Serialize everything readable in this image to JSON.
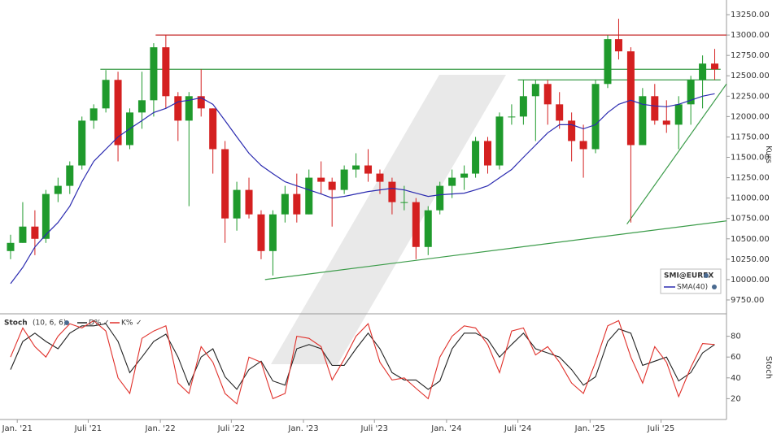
{
  "chart_data": [
    {
      "type": "candlestick",
      "legend_title": "SMI@EUREX",
      "ylabel": "Kurs",
      "up_color": "#1f9a2c",
      "down_color": "#d42020",
      "xlim": [
        "2020-11-18",
        "2025-12-15"
      ],
      "ylim": [
        9580,
        13430
      ],
      "yticks": [
        {
          "value": 9750,
          "label": "9750.00"
        },
        {
          "value": 10000,
          "label": "10000.00"
        },
        {
          "value": 10250,
          "label": "10250.00"
        },
        {
          "value": 10500,
          "label": "10500.00"
        },
        {
          "value": 10750,
          "label": "10750.00"
        },
        {
          "value": 11000,
          "label": "11000.00"
        },
        {
          "value": 11250,
          "label": "11250.00"
        },
        {
          "value": 11500,
          "label": "11500.00"
        },
        {
          "value": 11750,
          "label": "11750.00"
        },
        {
          "value": 12000,
          "label": "12000.00"
        },
        {
          "value": 12250,
          "label": "12250.00"
        },
        {
          "value": 12500,
          "label": "12500.00"
        },
        {
          "value": 12750,
          "label": "12750.00"
        },
        {
          "value": 13000,
          "label": "13000.00"
        },
        {
          "value": 13250,
          "label": "13250.00"
        }
      ],
      "x": [
        "2020-12-15",
        "2021-01-15",
        "2021-02-15",
        "2021-03-15",
        "2021-04-15",
        "2021-05-15",
        "2021-06-15",
        "2021-07-15",
        "2021-08-15",
        "2021-09-15",
        "2021-10-15",
        "2021-11-15",
        "2021-12-15",
        "2022-01-15",
        "2022-02-15",
        "2022-03-15",
        "2022-04-15",
        "2022-05-15",
        "2022-06-15",
        "2022-07-15",
        "2022-08-15",
        "2022-09-15",
        "2022-10-15",
        "2022-11-15",
        "2022-12-15",
        "2023-01-15",
        "2023-02-15",
        "2023-03-15",
        "2023-04-15",
        "2023-05-15",
        "2023-06-15",
        "2023-07-15",
        "2023-08-15",
        "2023-09-15",
        "2023-10-15",
        "2023-11-15",
        "2023-12-15",
        "2024-01-15",
        "2024-02-15",
        "2024-03-15",
        "2024-04-15",
        "2024-05-15",
        "2024-06-15",
        "2024-07-15",
        "2024-08-15",
        "2024-09-15",
        "2024-10-15",
        "2024-11-15",
        "2024-12-15",
        "2025-01-15",
        "2025-02-15",
        "2025-03-15",
        "2025-04-15",
        "2025-05-15",
        "2025-06-15",
        "2025-07-15",
        "2025-08-15",
        "2025-09-15",
        "2025-10-15",
        "2025-11-15"
      ],
      "open": [
        10350,
        10450,
        10650,
        10500,
        11050,
        11150,
        11400,
        11950,
        12100,
        12450,
        11650,
        12050,
        12200,
        12850,
        12250,
        11950,
        12250,
        12100,
        11600,
        10750,
        11100,
        10800,
        10350,
        10800,
        11050,
        10800,
        11250,
        11200,
        11100,
        11350,
        11400,
        11300,
        11200,
        10950,
        10950,
        10400,
        10850,
        11150,
        11250,
        11300,
        11700,
        11400,
        12000,
        12000,
        12250,
        12400,
        12150,
        11950,
        11700,
        11600,
        12400,
        12950,
        12800,
        11650,
        12250,
        11950,
        11900,
        12150,
        12450,
        12650
      ],
      "high": [
        10550,
        10950,
        10850,
        11100,
        11250,
        11450,
        12000,
        12150,
        12570,
        12550,
        12100,
        12550,
        12900,
        13000,
        12300,
        12300,
        12580,
        12100,
        11700,
        11200,
        11250,
        10850,
        10850,
        11150,
        11300,
        11350,
        11450,
        11250,
        11400,
        11550,
        11600,
        11350,
        11250,
        11150,
        11000,
        10900,
        11200,
        11350,
        11400,
        11750,
        11750,
        12050,
        12150,
        12450,
        12450,
        12450,
        12300,
        12050,
        11900,
        12450,
        13000,
        13200,
        12850,
        12350,
        12400,
        12200,
        12250,
        12500,
        12750,
        12830
      ],
      "low": [
        10250,
        10450,
        10300,
        10450,
        10950,
        11050,
        11350,
        11850,
        12050,
        11450,
        11600,
        11850,
        12000,
        12100,
        11700,
        10900,
        12000,
        11300,
        10450,
        10600,
        10750,
        10250,
        10050,
        10700,
        10700,
        10800,
        11050,
        10650,
        11050,
        11250,
        11200,
        11050,
        10800,
        10850,
        10250,
        10300,
        10800,
        11000,
        11100,
        11250,
        11300,
        11350,
        11900,
        11900,
        11700,
        11900,
        11850,
        11450,
        11250,
        11550,
        12350,
        12700,
        10700,
        11650,
        11900,
        11800,
        11600,
        11900,
        12100,
        12450
      ],
      "close": [
        10450,
        10650,
        10500,
        11050,
        11150,
        11400,
        11950,
        12100,
        12450,
        11650,
        12050,
        12200,
        12850,
        12250,
        11950,
        12250,
        12100,
        11600,
        10750,
        11100,
        10800,
        10350,
        10800,
        11050,
        10800,
        11250,
        11200,
        11100,
        11350,
        11400,
        11300,
        11200,
        10950,
        10950,
        10400,
        10850,
        11150,
        11250,
        11300,
        11700,
        11400,
        12000,
        12000,
        12250,
        12400,
        12150,
        11950,
        11700,
        11600,
        12400,
        12950,
        12800,
        11650,
        12250,
        11950,
        11900,
        12150,
        12450,
        12650,
        12580
      ],
      "series": [
        {
          "name": "SMA(40)",
          "color": "#2b2bb0",
          "values": [
            9950,
            10150,
            10400,
            10550,
            10700,
            10900,
            11200,
            11450,
            11600,
            11750,
            11850,
            11950,
            12050,
            12100,
            12180,
            12200,
            12230,
            12150,
            11950,
            11750,
            11550,
            11400,
            11300,
            11200,
            11150,
            11100,
            11050,
            11000,
            11020,
            11050,
            11080,
            11100,
            11120,
            11100,
            11060,
            11020,
            11040,
            11050,
            11060,
            11100,
            11150,
            11250,
            11350,
            11500,
            11650,
            11800,
            11900,
            11900,
            11850,
            11900,
            12050,
            12150,
            12200,
            12150,
            12130,
            12120,
            12150,
            12200,
            12250,
            12280
          ]
        }
      ],
      "lines": [
        {
          "x": [
            "2021-12-20",
            "2025-12-15"
          ],
          "y": [
            13000,
            13000
          ],
          "color": "#c62a2a"
        },
        {
          "x": [
            "2021-08-01",
            "2025-11-30"
          ],
          "y": [
            12580,
            12580
          ],
          "color": "#3c9c4a"
        },
        {
          "x": [
            "2024-07-01",
            "2025-11-30"
          ],
          "y": [
            12450,
            12450
          ],
          "color": "#3c9c4a"
        },
        {
          "x": [
            "2022-09-25",
            "2025-12-15"
          ],
          "y": [
            10000,
            10720
          ],
          "color": "#3c9c4a"
        },
        {
          "x": [
            "2025-04-05",
            "2025-12-15"
          ],
          "y": [
            10680,
            12400
          ],
          "color": "#3c9c4a"
        }
      ]
    },
    {
      "type": "line",
      "title": "Stoch",
      "parameters": "(10, 6, 6)",
      "ylabel": "Stoch",
      "xlim": [
        "2020-11-18",
        "2025-12-15"
      ],
      "ylim": [
        0,
        100
      ],
      "yticks": [
        20,
        40,
        60,
        80
      ],
      "xticks": [
        {
          "value": "2021-01-01",
          "label": "Jan. '21"
        },
        {
          "value": "2021-07-01",
          "label": "Juli '21"
        },
        {
          "value": "2022-01-01",
          "label": "Jan. '22"
        },
        {
          "value": "2022-07-01",
          "label": "Juli '22"
        },
        {
          "value": "2023-01-01",
          "label": "Jan. '23"
        },
        {
          "value": "2023-07-01",
          "label": "Juli '23"
        },
        {
          "value": "2024-01-01",
          "label": "Jan. '24"
        },
        {
          "value": "2024-07-01",
          "label": "Juli '24"
        },
        {
          "value": "2025-01-01",
          "label": "Jan. '25"
        },
        {
          "value": "2025-07-01",
          "label": "Juli '25"
        }
      ],
      "x": [
        "2020-12-15",
        "2021-01-15",
        "2021-02-15",
        "2021-03-15",
        "2021-04-15",
        "2021-05-15",
        "2021-06-15",
        "2021-07-15",
        "2021-08-15",
        "2021-09-15",
        "2021-10-15",
        "2021-11-15",
        "2021-12-15",
        "2022-01-15",
        "2022-02-15",
        "2022-03-15",
        "2022-04-15",
        "2022-05-15",
        "2022-06-15",
        "2022-07-15",
        "2022-08-15",
        "2022-09-15",
        "2022-10-15",
        "2022-11-15",
        "2022-12-15",
        "2023-01-15",
        "2023-02-15",
        "2023-03-15",
        "2023-04-15",
        "2023-05-15",
        "2023-06-15",
        "2023-07-15",
        "2023-08-15",
        "2023-09-15",
        "2023-10-15",
        "2023-11-15",
        "2023-12-15",
        "2024-01-15",
        "2024-02-15",
        "2024-03-15",
        "2024-04-15",
        "2024-05-15",
        "2024-06-15",
        "2024-07-15",
        "2024-08-15",
        "2024-09-15",
        "2024-10-15",
        "2024-11-15",
        "2024-12-15",
        "2025-01-15",
        "2025-02-15",
        "2025-03-15",
        "2025-04-15",
        "2025-05-15",
        "2025-06-15",
        "2025-07-15",
        "2025-08-15",
        "2025-09-15",
        "2025-10-15",
        "2025-11-15"
      ],
      "series": [
        {
          "name": "D%",
          "color": "#222222",
          "values": [
            48,
            75,
            83,
            75,
            68,
            83,
            90,
            90,
            92,
            75,
            45,
            60,
            75,
            82,
            60,
            33,
            60,
            68,
            41,
            29,
            48,
            56,
            37,
            33,
            68,
            72,
            68,
            52,
            52,
            68,
            83,
            68,
            45,
            38,
            38,
            29,
            37,
            68,
            83,
            83,
            77,
            60,
            72,
            83,
            68,
            64,
            60,
            48,
            33,
            41,
            75,
            87,
            83,
            52,
            56,
            60,
            37,
            45,
            64,
            72
          ]
        },
        {
          "name": "K%",
          "color": "#e0302a",
          "values": [
            60,
            88,
            70,
            60,
            80,
            92,
            88,
            95,
            85,
            40,
            25,
            78,
            85,
            90,
            35,
            25,
            70,
            55,
            25,
            15,
            60,
            55,
            20,
            25,
            80,
            78,
            70,
            38,
            58,
            80,
            92,
            55,
            38,
            40,
            30,
            20,
            60,
            80,
            90,
            88,
            72,
            45,
            85,
            88,
            62,
            70,
            55,
            35,
            25,
            55,
            90,
            95,
            60,
            35,
            70,
            55,
            22,
            50,
            73,
            72
          ]
        }
      ]
    }
  ]
}
